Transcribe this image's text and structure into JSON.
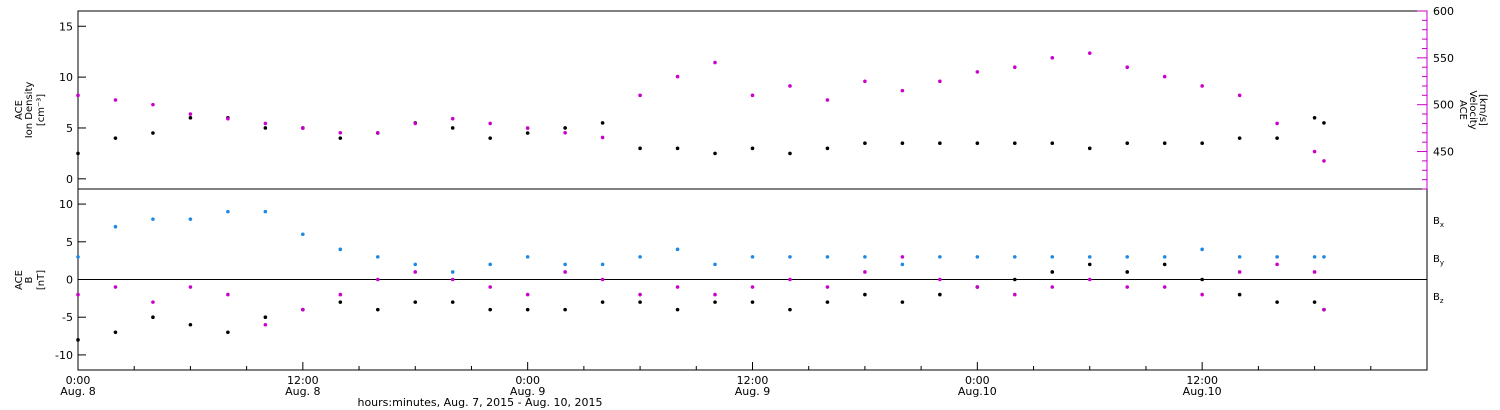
{
  "chart_data": [
    {
      "type": "scatter",
      "panel": "top",
      "ylabel_left": [
        "ACE",
        "Ion Density",
        "[cm⁻³]"
      ],
      "ylabel_right": [
        "ACE",
        "Velocity",
        "[km/s]"
      ],
      "ylim_left": [
        -1,
        16.5
      ],
      "yticks_left": [
        0,
        5,
        10,
        15
      ],
      "ylim_right": [
        410,
        600
      ],
      "yticks_right": [
        450,
        500,
        550,
        600
      ],
      "right_axis_color": "#cc00cc",
      "series": [
        {
          "axis": "left",
          "color": "#000000",
          "x": [
            0,
            2,
            4,
            6,
            8,
            10,
            12,
            14,
            16,
            18,
            20,
            22,
            24,
            26,
            28,
            30,
            32,
            34,
            36,
            38,
            40,
            42,
            44,
            46,
            48,
            50,
            52,
            54,
            56,
            58,
            60,
            62,
            64,
            66,
            66.5
          ],
          "values": [
            2.5,
            4,
            4.5,
            6,
            6,
            5,
            5,
            4,
            4.5,
            5.5,
            5,
            4,
            4.5,
            5,
            5.5,
            3,
            3,
            2.5,
            3,
            2.5,
            3,
            3.5,
            3.5,
            3.5,
            3.5,
            3.5,
            3.5,
            3,
            3.5,
            3.5,
            3.5,
            4,
            4,
            6,
            5.5
          ]
        },
        {
          "axis": "right",
          "color": "#cc00cc",
          "x": [
            0,
            2,
            4,
            6,
            8,
            10,
            12,
            14,
            16,
            18,
            20,
            22,
            24,
            26,
            28,
            30,
            32,
            34,
            36,
            38,
            40,
            42,
            44,
            46,
            48,
            50,
            52,
            54,
            56,
            58,
            60,
            62,
            64,
            66,
            66.5
          ],
          "values": [
            510,
            505,
            500,
            490,
            485,
            480,
            475,
            470,
            470,
            480,
            485,
            480,
            475,
            470,
            465,
            510,
            530,
            545,
            510,
            520,
            505,
            525,
            515,
            525,
            535,
            540,
            550,
            555,
            540,
            530,
            520,
            510,
            480,
            450,
            440
          ]
        }
      ]
    },
    {
      "type": "scatter",
      "panel": "bottom",
      "ylabel": [
        "ACE",
        "B",
        "[nT]"
      ],
      "ylim": [
        -12,
        12
      ],
      "yticks": [
        -10,
        -5,
        0,
        5,
        10
      ],
      "zero_line": true,
      "legend": [
        {
          "label": "B",
          "sub": "x",
          "color": "#000000"
        },
        {
          "label": "B",
          "sub": "y",
          "color": "#1e88e5"
        },
        {
          "label": "B",
          "sub": "z",
          "color": "#cc00cc"
        }
      ],
      "series": [
        {
          "name": "Bx",
          "color": "#000000",
          "x": [
            0,
            2,
            4,
            6,
            8,
            10,
            12,
            14,
            16,
            18,
            20,
            22,
            24,
            26,
            28,
            30,
            32,
            34,
            36,
            38,
            40,
            42,
            44,
            46,
            48,
            50,
            52,
            54,
            56,
            58,
            60,
            62,
            64,
            66,
            66.5
          ],
          "values": [
            -8,
            -7,
            -5,
            -6,
            -7,
            -5,
            -4,
            -3,
            -4,
            -3,
            -3,
            -4,
            -4,
            -4,
            -3,
            -3,
            -4,
            -3,
            -3,
            -4,
            -3,
            -2,
            -3,
            -2,
            -1,
            0,
            1,
            2,
            1,
            2,
            0,
            -2,
            -3,
            -3,
            -4
          ]
        },
        {
          "name": "By",
          "color": "#1e88e5",
          "x": [
            0,
            2,
            4,
            6,
            8,
            10,
            12,
            14,
            16,
            18,
            20,
            22,
            24,
            26,
            28,
            30,
            32,
            34,
            36,
            38,
            40,
            42,
            44,
            46,
            48,
            50,
            52,
            54,
            56,
            58,
            60,
            62,
            64,
            66,
            66.5
          ],
          "values": [
            3,
            7,
            8,
            8,
            9,
            9,
            6,
            4,
            3,
            2,
            1,
            2,
            3,
            2,
            2,
            3,
            4,
            2,
            3,
            3,
            3,
            3,
            2,
            3,
            3,
            3,
            3,
            3,
            3,
            3,
            4,
            3,
            3,
            3,
            3
          ]
        },
        {
          "name": "Bz",
          "color": "#cc00cc",
          "x": [
            0,
            2,
            4,
            6,
            8,
            10,
            12,
            14,
            16,
            18,
            20,
            22,
            24,
            26,
            28,
            30,
            32,
            34,
            36,
            38,
            40,
            42,
            44,
            46,
            48,
            50,
            52,
            54,
            56,
            58,
            60,
            62,
            64,
            66,
            66.5
          ],
          "values": [
            -2,
            -1,
            -3,
            -1,
            -2,
            -6,
            -4,
            -2,
            0,
            1,
            0,
            -1,
            -2,
            1,
            0,
            -2,
            -1,
            -2,
            -1,
            0,
            -1,
            1,
            3,
            0,
            -1,
            -2,
            -1,
            0,
            -1,
            -1,
            -2,
            1,
            2,
            1,
            -4
          ]
        }
      ]
    }
  ],
  "x_axis": {
    "range_hours": [
      0,
      72
    ],
    "ticks": [
      {
        "hour": 0,
        "time": "0:00",
        "date": "Aug. 8"
      },
      {
        "hour": 12,
        "time": "12:00",
        "date": "Aug. 8"
      },
      {
        "hour": 24,
        "time": "0:00",
        "date": "Aug. 9"
      },
      {
        "hour": 36,
        "time": "12:00",
        "date": "Aug. 9"
      },
      {
        "hour": 48,
        "time": "0:00",
        "date": "Aug.10"
      },
      {
        "hour": 60,
        "time": "12:00",
        "date": "Aug.10"
      }
    ],
    "xlabel": "hours:minutes, Aug.  7, 2015 - Aug. 10, 2015"
  }
}
